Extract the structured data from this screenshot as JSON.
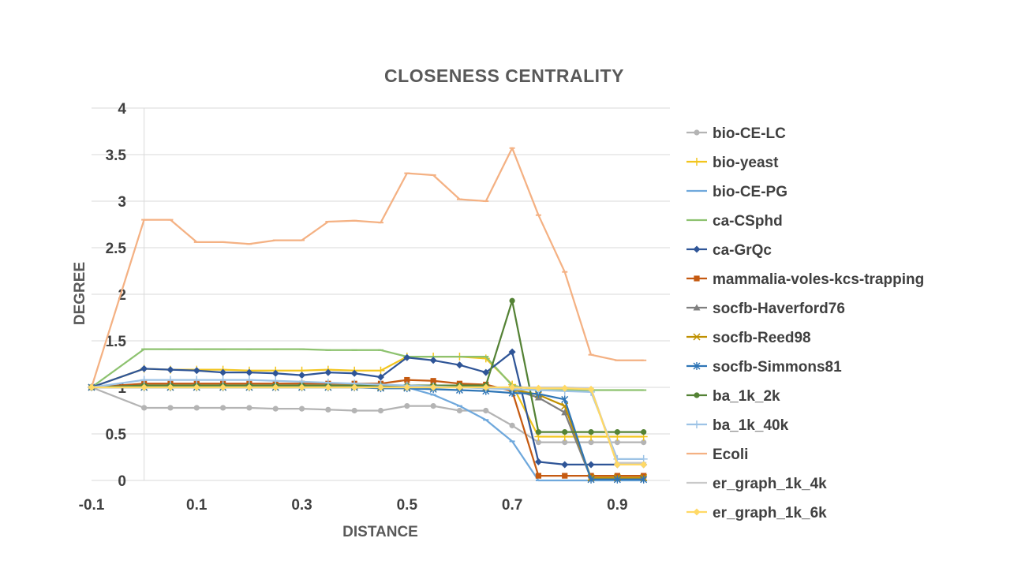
{
  "chart_data": {
    "type": "line",
    "title": "CLOSENESS CENTRALITY",
    "xlabel": "DISTANCE",
    "ylabel": "DEGREE",
    "xlim": [
      -0.1,
      1.0
    ],
    "ylim": [
      0,
      4
    ],
    "x_ticks": [
      "-0.1",
      "0.1",
      "0.3",
      "0.5",
      "0.7",
      "0.9"
    ],
    "y_ticks": [
      "0",
      "0.5",
      "1",
      "1.5",
      "2",
      "2.5",
      "3",
      "3.5",
      "4"
    ],
    "grid": true,
    "legend_position": "right",
    "x": [
      -0.1,
      0,
      0.05,
      0.1,
      0.15,
      0.2,
      0.25,
      0.3,
      0.35,
      0.4,
      0.45,
      0.5,
      0.55,
      0.6,
      0.65,
      0.7,
      0.75,
      0.8,
      0.85,
      0.9,
      0.95
    ],
    "series": [
      {
        "name": "bio-CE-LC",
        "color": "#b4b4b4",
        "marker": "circle",
        "values": [
          1,
          0.78,
          0.78,
          0.78,
          0.78,
          0.78,
          0.77,
          0.77,
          0.76,
          0.75,
          0.75,
          0.8,
          0.8,
          0.75,
          0.75,
          0.59,
          0.41,
          0.41,
          0.41,
          0.41,
          0.41
        ]
      },
      {
        "name": "bio-yeast",
        "color": "#f2c51e",
        "marker": "plus",
        "values": [
          1,
          1.2,
          1.19,
          1.19,
          1.19,
          1.18,
          1.18,
          1.18,
          1.19,
          1.18,
          1.18,
          1.33,
          1.33,
          1.33,
          1.31,
          1.03,
          0.47,
          0.47,
          0.47,
          0.47,
          0.47
        ]
      },
      {
        "name": "bio-CE-PG",
        "color": "#6fa8dc",
        "marker": "dash",
        "values": [
          1,
          1,
          1,
          1,
          1,
          1,
          1,
          1,
          1,
          1,
          1,
          1,
          0.92,
          0.8,
          0.65,
          0.42,
          0,
          0,
          0,
          0,
          0
        ]
      },
      {
        "name": "ca-CSphd",
        "color": "#8dc26f",
        "marker": "dash",
        "values": [
          1,
          1.41,
          1.41,
          1.41,
          1.41,
          1.41,
          1.41,
          1.41,
          1.4,
          1.4,
          1.4,
          1.33,
          1.33,
          1.33,
          1.33,
          1.02,
          0.97,
          0.97,
          0.97,
          0.97,
          0.97
        ]
      },
      {
        "name": "ca-GrQc",
        "color": "#2f5597",
        "marker": "diamond",
        "values": [
          1,
          1.2,
          1.19,
          1.18,
          1.16,
          1.16,
          1.15,
          1.13,
          1.16,
          1.15,
          1.11,
          1.32,
          1.29,
          1.24,
          1.16,
          1.38,
          0.2,
          0.17,
          0.17,
          0.17,
          0.17
        ]
      },
      {
        "name": "mammalia-voles-kcs-trapping",
        "color": "#c55a11",
        "marker": "square",
        "values": [
          1,
          1.04,
          1.04,
          1.04,
          1.04,
          1.04,
          1.04,
          1.04,
          1.04,
          1.04,
          1.04,
          1.08,
          1.07,
          1.04,
          1.03,
          0.96,
          0.05,
          0.05,
          0.05,
          0.05,
          0.05
        ]
      },
      {
        "name": "socfb-Haverford76",
        "color": "#7f7f7f",
        "marker": "triangle",
        "values": [
          1,
          1.02,
          1.02,
          1.02,
          1.02,
          1.02,
          1.02,
          1.02,
          1.02,
          1.01,
          1.01,
          1.01,
          1.01,
          1.01,
          1.01,
          0.98,
          0.89,
          0.73,
          0.02,
          0.02,
          0.02
        ]
      },
      {
        "name": "socfb-Reed98",
        "color": "#bf9000",
        "marker": "x",
        "values": [
          1,
          1,
          1,
          1,
          1,
          1,
          1,
          1,
          1,
          1,
          1,
          1,
          1,
          1,
          1,
          0.98,
          0.92,
          0.8,
          0.03,
          0.03,
          0.03
        ]
      },
      {
        "name": "socfb-Simmons81",
        "color": "#2e75b6",
        "marker": "asterisk",
        "values": [
          1,
          1,
          1,
          1,
          1,
          1,
          1,
          1,
          1,
          1,
          0.99,
          0.99,
          0.98,
          0.97,
          0.96,
          0.94,
          0.93,
          0.87,
          0.01,
          0.01,
          0.01
        ]
      },
      {
        "name": "ba_1k_2k",
        "color": "#548235",
        "marker": "circle",
        "values": [
          1,
          1.02,
          1.02,
          1.02,
          1.02,
          1.02,
          1.02,
          1.02,
          1.02,
          1.02,
          1.02,
          1.02,
          1.02,
          1.02,
          1.02,
          1.93,
          0.52,
          0.52,
          0.52,
          0.52,
          0.52
        ]
      },
      {
        "name": "ba_1k_40k",
        "color": "#9dc3e6",
        "marker": "plus",
        "values": [
          1,
          1.08,
          1.08,
          1.08,
          1.08,
          1.08,
          1.07,
          1.06,
          1.05,
          1.04,
          1.03,
          1.02,
          1.01,
          1.0,
          0.99,
          0.98,
          0.97,
          0.96,
          0.95,
          0.23,
          0.23
        ]
      },
      {
        "name": "Ecoli",
        "color": "#f4b183",
        "marker": "dash",
        "values": [
          1,
          2.8,
          2.8,
          2.56,
          2.56,
          2.54,
          2.58,
          2.58,
          2.78,
          2.79,
          2.77,
          3.3,
          3.28,
          3.02,
          3.0,
          3.57,
          2.85,
          2.24,
          1.35,
          1.29,
          1.29
        ]
      },
      {
        "name": "er_graph_1k_4k",
        "color": "#c9c9c9",
        "marker": "dash",
        "values": [
          1,
          1,
          1,
          1,
          1,
          1,
          1,
          1,
          1,
          1,
          1,
          1,
          1,
          1,
          1,
          1,
          1,
          1,
          0.99,
          0.19,
          0.19
        ]
      },
      {
        "name": "er_graph_1k_6k",
        "color": "#ffd966",
        "marker": "diamond",
        "values": [
          1,
          1,
          1,
          1,
          1,
          1,
          1,
          1,
          1,
          1,
          1,
          1,
          1,
          1,
          1,
          1,
          0.99,
          0.99,
          0.98,
          0.17,
          0.17
        ]
      }
    ]
  }
}
